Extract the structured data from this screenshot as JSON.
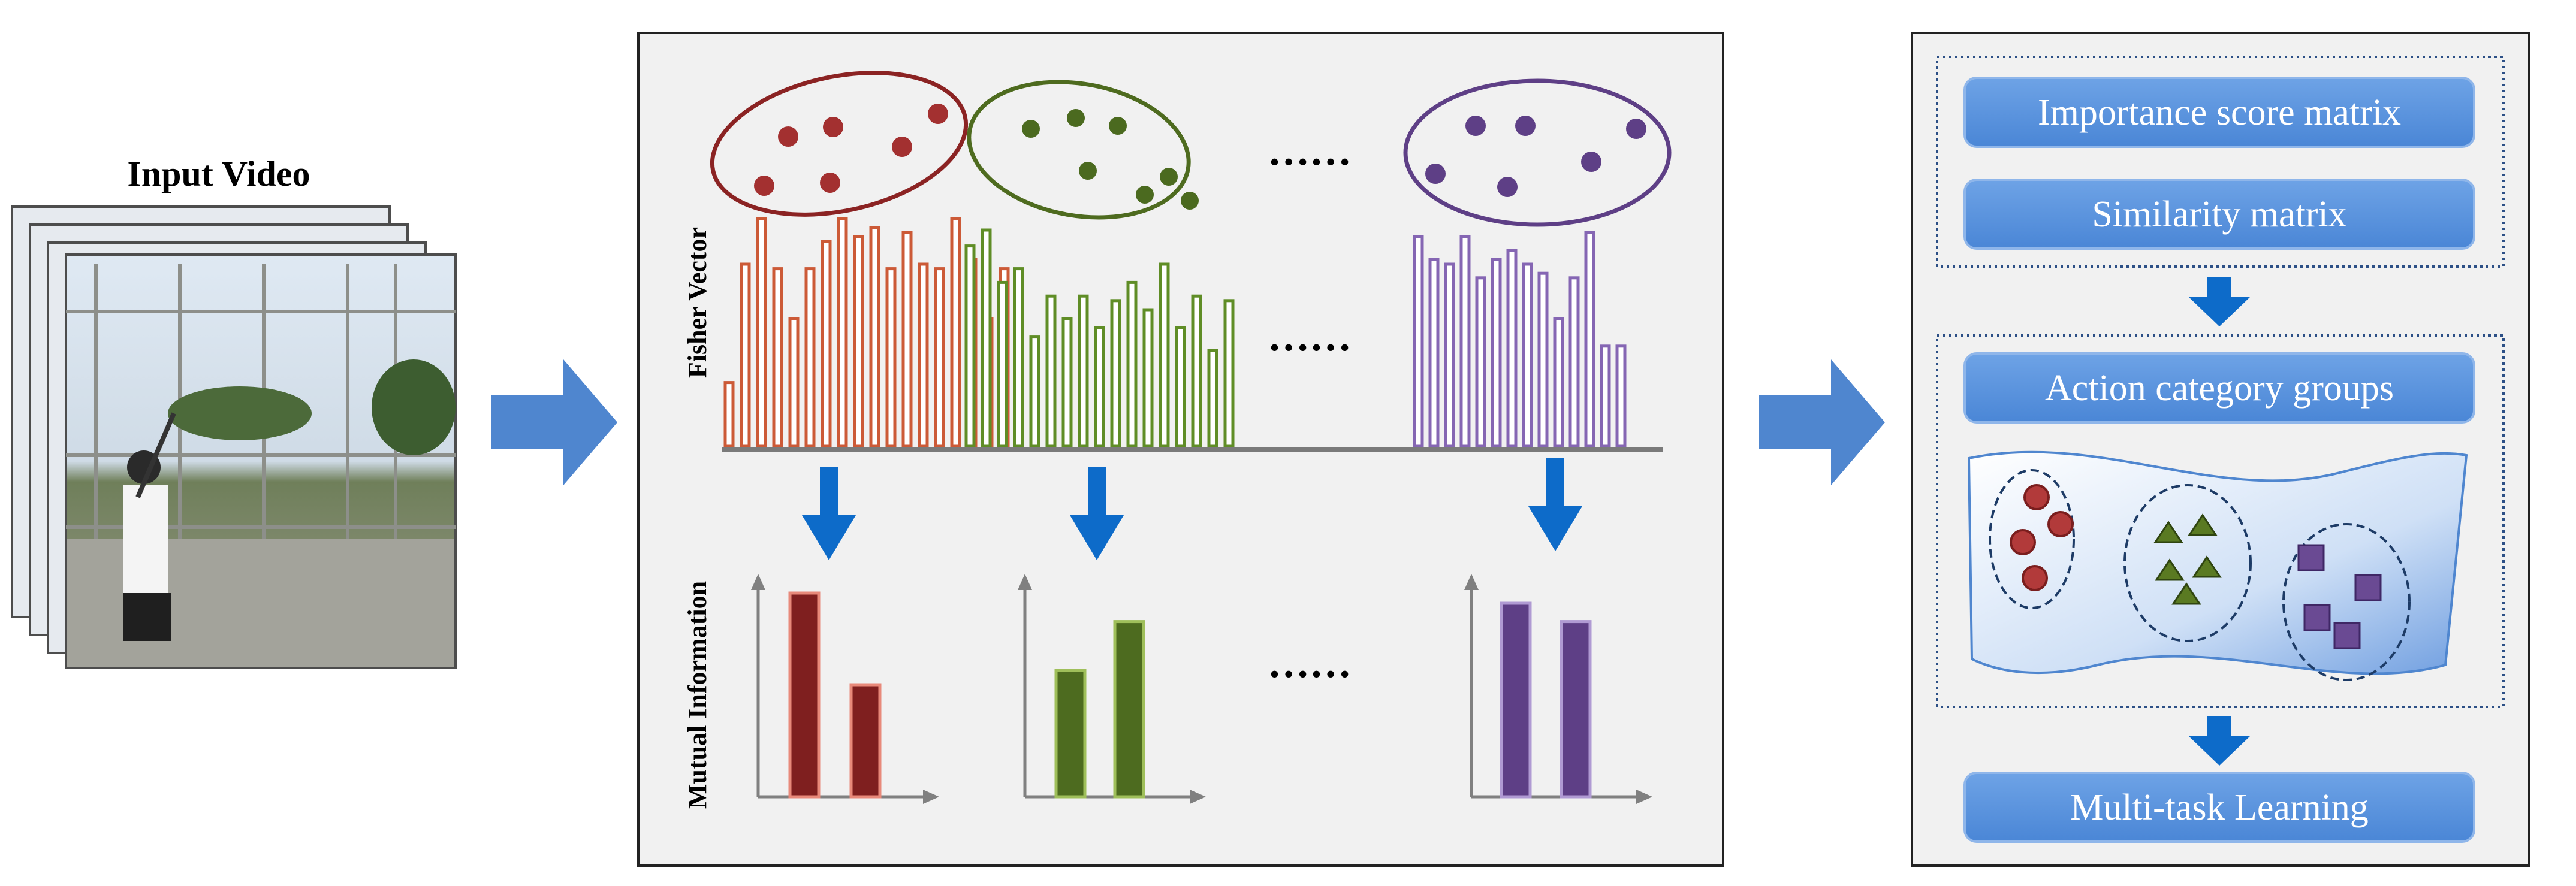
{
  "input": {
    "title": "Input Video"
  },
  "middle": {
    "fisher_label": "Fisher Vector",
    "mi_label": "Mutual Information",
    "ellipsis": "……"
  },
  "right": {
    "buttons": {
      "importance": "Importance score matrix",
      "similarity": "Similarity matrix",
      "action_groups": "Action category groups",
      "multitask": "Multi-task Learning"
    }
  },
  "colors": {
    "red": "#8b2323",
    "green": "#4e6b1f",
    "purple": "#5e3f86",
    "orange_bar": "#cc5a37",
    "green_bar": "#5f8d26",
    "purple_bar": "#8566b3",
    "arrow_blue": "#4f86cf",
    "button_fill": "#5a93de",
    "panel_bg": "#f1f1f1"
  },
  "fisher_bars": {
    "orange": [
      0.28,
      0.8,
      1.0,
      0.78,
      0.56,
      0.78,
      0.9,
      1.0,
      0.92,
      0.96,
      0.78,
      0.94,
      0.8,
      0.78,
      1.0,
      0.82,
      0.56,
      0.78
    ],
    "green": [
      0.88,
      0.95,
      0.72,
      0.78,
      0.48,
      0.66,
      0.56,
      0.66,
      0.52,
      0.64,
      0.72,
      0.6,
      0.8,
      0.52,
      0.66,
      0.42,
      0.64
    ],
    "purple": [
      0.92,
      0.82,
      0.8,
      0.92,
      0.74,
      0.82,
      0.86,
      0.8,
      0.76,
      0.56,
      0.74,
      0.94,
      0.44,
      0.44
    ]
  },
  "mi_bars": {
    "red": [
      1.0,
      0.55
    ],
    "green": [
      0.62,
      0.86
    ],
    "purple": [
      0.95,
      0.86
    ]
  }
}
